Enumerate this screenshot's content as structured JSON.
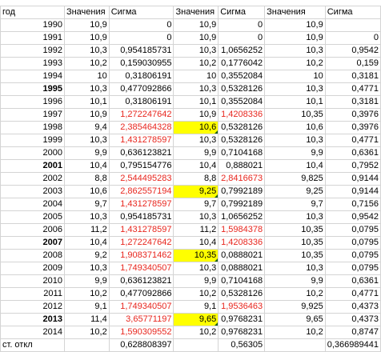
{
  "headers": [
    "год",
    "Значения",
    "Сигма",
    "Значения",
    "Сигма",
    "Значения",
    "Сигма"
  ],
  "rows": [
    {
      "year": "1990",
      "bold": false,
      "v1": "10,9",
      "s1": "0",
      "v2": "10,9",
      "s2": "0",
      "v3": "10,9",
      "s3": ""
    },
    {
      "year": "1991",
      "bold": false,
      "v1": "10,9",
      "s1": "0",
      "v2": "10,9",
      "s2": "0",
      "v3": "10,9",
      "s3": "0"
    },
    {
      "year": "1992",
      "bold": false,
      "v1": "10,3",
      "s1": "0,954185731",
      "v2": "10,3",
      "s2": "1,0656252",
      "v3": "10,3",
      "s3": "0,9542"
    },
    {
      "year": "1993",
      "bold": false,
      "v1": "10,2",
      "s1": "0,159030955",
      "v2": "10,2",
      "s2": "0,1776042",
      "v3": "10,2",
      "s3": "0,159"
    },
    {
      "year": "1994",
      "bold": false,
      "v1": "10",
      "s1": "0,31806191",
      "v2": "10",
      "s2": "0,3552084",
      "v3": "10",
      "s3": "0,3181"
    },
    {
      "year": "1995",
      "bold": true,
      "v1": "10,3",
      "s1": "0,477092866",
      "v2": "10,3",
      "s2": "0,5328126",
      "v3": "10,3",
      "s3": "0,4771"
    },
    {
      "year": "1996",
      "bold": false,
      "v1": "10,1",
      "s1": "0,31806191",
      "v2": "10,1",
      "s2": "0,3552084",
      "v3": "10,1",
      "s3": "0,3181"
    },
    {
      "year": "1997",
      "bold": false,
      "v1": "10,9",
      "s1": "1,272247642",
      "s1red": true,
      "v2": "10,9",
      "s2": "1,4208336",
      "s2red": true,
      "v3": "10,35",
      "s3": "0,3976"
    },
    {
      "year": "1998",
      "bold": false,
      "v1": "9,4",
      "s1": "2,385464328",
      "s1red": true,
      "v2": "10,6",
      "v2hl": true,
      "s2": "0,5328126",
      "v3": "10,6",
      "s3": "0,3976"
    },
    {
      "year": "1999",
      "bold": false,
      "v1": "10,3",
      "s1": "1,431278597",
      "s1red": true,
      "v2": "10,3",
      "s2": "0,5328126",
      "v3": "10,3",
      "s3": "0,4771"
    },
    {
      "year": "2000",
      "bold": false,
      "v1": "9,9",
      "s1": "0,636123821",
      "v2": "9,9",
      "s2": "0,7104168",
      "v3": "9,9",
      "s3": "0,6361"
    },
    {
      "year": "2001",
      "bold": true,
      "v1": "10,4",
      "s1": "0,795154776",
      "v2": "10,4",
      "s2": "0,888021",
      "v3": "10,4",
      "s3": "0,7952"
    },
    {
      "year": "2002",
      "bold": false,
      "v1": "8,8",
      "s1": "2,544495283",
      "s1red": true,
      "v2": "8,8",
      "s2": "2,8416673",
      "s2red": true,
      "v3": "9,825",
      "s3": "0,9144"
    },
    {
      "year": "2003",
      "bold": false,
      "v1": "10,6",
      "s1": "2,862557194",
      "s1red": true,
      "v2": "9,25",
      "v2hl": true,
      "s2": "0,7992189",
      "v3": "9,25",
      "s3": "0,9144"
    },
    {
      "year": "2004",
      "bold": false,
      "v1": "9,7",
      "s1": "1,431278597",
      "s1red": true,
      "v2": "9,7",
      "s2": "0,7992189",
      "v3": "9,7",
      "s3": "0,7156"
    },
    {
      "year": "2005",
      "bold": false,
      "v1": "10,3",
      "s1": "0,954185731",
      "v2": "10,3",
      "s2": "1,0656252",
      "v3": "10,3",
      "s3": "0,9542"
    },
    {
      "year": "2006",
      "bold": false,
      "v1": "11,2",
      "s1": "1,431278597",
      "s1red": true,
      "v2": "11,2",
      "s2": "1,5984378",
      "s2red": true,
      "v3": "10,35",
      "s3": "0,0795"
    },
    {
      "year": "2007",
      "bold": true,
      "v1": "10,4",
      "s1": "1,272247642",
      "s1red": true,
      "v2": "10,4",
      "s2": "1,4208336",
      "s2red": true,
      "v3": "10,35",
      "s3": "0,0795"
    },
    {
      "year": "2008",
      "bold": false,
      "v1": "9,2",
      "s1": "1,908371462",
      "s1red": true,
      "v2": "10,35",
      "v2hl": true,
      "s2": "0,0888021",
      "v3": "10,35",
      "s3": "0,0795"
    },
    {
      "year": "2009",
      "bold": false,
      "v1": "10,3",
      "s1": "1,749340507",
      "s1red": true,
      "v2": "10,3",
      "s2": "0,0888021",
      "v3": "10,3",
      "s3": "0,0795"
    },
    {
      "year": "2010",
      "bold": false,
      "v1": "9,9",
      "s1": "0,636123821",
      "v2": "9,9",
      "s2": "0,7104168",
      "v3": "9,9",
      "s3": "0,6361"
    },
    {
      "year": "2011",
      "bold": false,
      "v1": "10,2",
      "s1": "0,477092866",
      "v2": "10,2",
      "s2": "0,5328126",
      "v3": "10,2",
      "s3": "0,4771"
    },
    {
      "year": "2012",
      "bold": false,
      "v1": "9,1",
      "s1": "1,749340507",
      "s1red": true,
      "v2": "9,1",
      "s2": "1,9536463",
      "s2red": true,
      "v3": "9,925",
      "s3": "0,4373"
    },
    {
      "year": "2013",
      "bold": true,
      "v1": "11,4",
      "s1": "3,65771197",
      "s1red": true,
      "v2": "9,65",
      "v2hl": true,
      "s2": "0,9768231",
      "v3": "9,65",
      "s3": "0,4373"
    },
    {
      "year": "2014",
      "bold": false,
      "v1": "10,2",
      "s1": "1,590309552",
      "s1red": true,
      "v2": "10,2",
      "s2": "0,9768231",
      "v3": "10,2",
      "s3": "0,8747"
    }
  ],
  "footer": {
    "label": "ст. откл",
    "s1": "0,628808397",
    "s2": "0,56305",
    "s3": "0,366989441"
  }
}
